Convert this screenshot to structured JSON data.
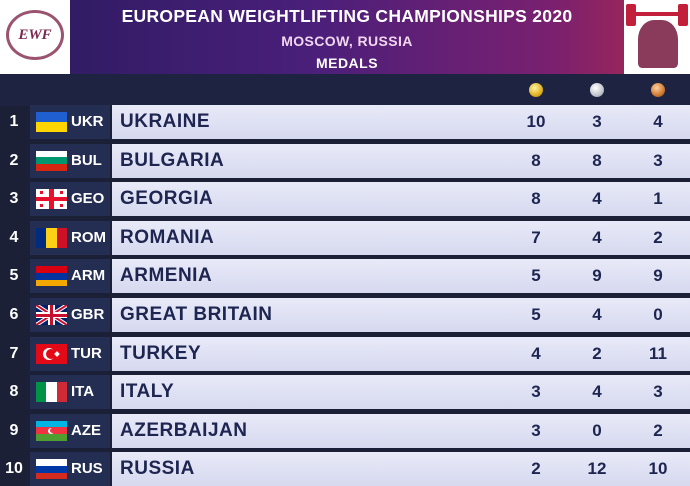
{
  "header": {
    "title": "EUROPEAN WEIGHTLIFTING CHAMPIONSHIPS 2020",
    "location": "MOSCOW, RUSSIA",
    "subtitle": "MEDALS",
    "logo_text": "EWF"
  },
  "medal_icons": [
    "gold-medal-icon",
    "silver-medal-icon",
    "bronze-medal-icon"
  ],
  "colors": {
    "gold": "#e0b020",
    "silver": "#c0c4cc",
    "bronze": "#d07a30"
  },
  "rows": [
    {
      "rank": "1",
      "code": "UKR",
      "country": "UKRAINE",
      "gold": "10",
      "silver": "3",
      "bronze": "4"
    },
    {
      "rank": "2",
      "code": "BUL",
      "country": "BULGARIA",
      "gold": "8",
      "silver": "8",
      "bronze": "3"
    },
    {
      "rank": "3",
      "code": "GEO",
      "country": "GEORGIA",
      "gold": "8",
      "silver": "4",
      "bronze": "1"
    },
    {
      "rank": "4",
      "code": "ROM",
      "country": "ROMANIA",
      "gold": "7",
      "silver": "4",
      "bronze": "2"
    },
    {
      "rank": "5",
      "code": "ARM",
      "country": "ARMENIA",
      "gold": "5",
      "silver": "9",
      "bronze": "9"
    },
    {
      "rank": "6",
      "code": "GBR",
      "country": "GREAT BRITAIN",
      "gold": "5",
      "silver": "4",
      "bronze": "0"
    },
    {
      "rank": "7",
      "code": "TUR",
      "country": "TURKEY",
      "gold": "4",
      "silver": "2",
      "bronze": "11"
    },
    {
      "rank": "8",
      "code": "ITA",
      "country": "ITALY",
      "gold": "3",
      "silver": "4",
      "bronze": "3"
    },
    {
      "rank": "9",
      "code": "AZE",
      "country": "AZERBAIJAN",
      "gold": "3",
      "silver": "0",
      "bronze": "2"
    },
    {
      "rank": "10",
      "code": "RUS",
      "country": "RUSSIA",
      "gold": "2",
      "silver": "12",
      "bronze": "10"
    }
  ]
}
